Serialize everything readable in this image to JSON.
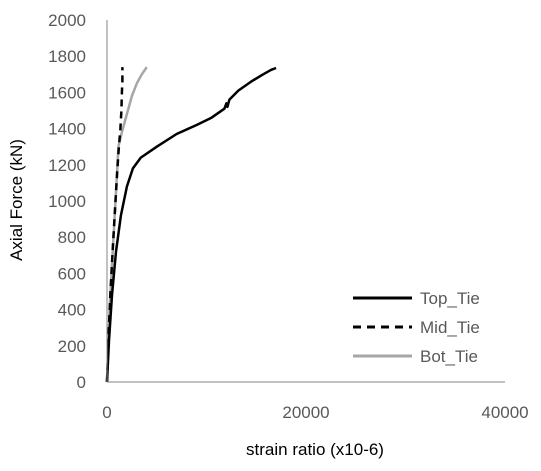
{
  "chart_data": {
    "type": "line",
    "xlabel": "strain ratio (x10-6)",
    "ylabel": "Axial Force (kN)",
    "xlim": [
      0,
      40000
    ],
    "ylim": [
      0,
      2000
    ],
    "x_ticks": [
      0,
      20000,
      40000
    ],
    "y_ticks": [
      0,
      200,
      400,
      600,
      800,
      1000,
      1200,
      1400,
      1600,
      1800,
      2000
    ],
    "x_tick_labels": [
      "0",
      "20000",
      "40000"
    ],
    "y_tick_labels": [
      "0",
      "200",
      "400",
      "600",
      "800",
      "1000",
      "1200",
      "1400",
      "1600",
      "1800",
      "2000"
    ],
    "grid": false,
    "legend_position": "lower-right",
    "series": [
      {
        "name": "Top_Tie",
        "color": "#000000",
        "dash": "solid",
        "points": [
          [
            0,
            0
          ],
          [
            200,
            230
          ],
          [
            500,
            480
          ],
          [
            900,
            720
          ],
          [
            1400,
            920
          ],
          [
            2000,
            1080
          ],
          [
            2600,
            1180
          ],
          [
            3400,
            1240
          ],
          [
            5000,
            1300
          ],
          [
            7000,
            1370
          ],
          [
            9000,
            1420
          ],
          [
            10500,
            1460
          ],
          [
            11800,
            1510
          ],
          [
            12000,
            1540
          ],
          [
            12100,
            1520
          ],
          [
            12300,
            1560
          ],
          [
            13200,
            1610
          ],
          [
            14500,
            1660
          ],
          [
            15700,
            1700
          ],
          [
            16500,
            1725
          ],
          [
            17000,
            1735
          ]
        ]
      },
      {
        "name": "Mid_Tie",
        "color": "#000000",
        "dash": "dashed",
        "points": [
          [
            0,
            0
          ],
          [
            150,
            250
          ],
          [
            350,
            500
          ],
          [
            600,
            760
          ],
          [
            850,
            1000
          ],
          [
            1050,
            1180
          ],
          [
            1200,
            1300
          ],
          [
            1350,
            1400
          ],
          [
            1450,
            1500
          ],
          [
            1500,
            1600
          ],
          [
            1550,
            1660
          ],
          [
            1550,
            1740
          ]
        ]
      },
      {
        "name": "Bot_Tie",
        "color": "#a6a6a6",
        "dash": "solid",
        "points": [
          [
            0,
            0
          ],
          [
            120,
            200
          ],
          [
            300,
            450
          ],
          [
            550,
            700
          ],
          [
            800,
            950
          ],
          [
            1000,
            1150
          ],
          [
            1150,
            1300
          ],
          [
            1500,
            1380
          ],
          [
            2000,
            1480
          ],
          [
            2500,
            1580
          ],
          [
            3000,
            1650
          ],
          [
            3500,
            1700
          ],
          [
            4000,
            1740
          ]
        ]
      }
    ]
  }
}
